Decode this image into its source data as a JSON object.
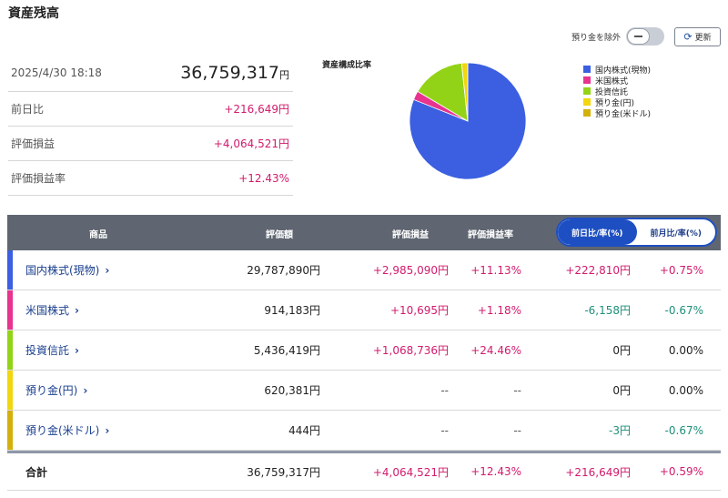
{
  "header": {
    "title": "資産残高"
  },
  "controls": {
    "exclude_label": "預り金を除外",
    "refresh_label": "更新"
  },
  "summary": {
    "datetime": "2025/4/30 18:18",
    "total": "36,759,317",
    "total_unit": "円",
    "rows": [
      {
        "label": "前日比",
        "value": "+216,649円"
      },
      {
        "label": "評価損益",
        "value": "+4,064,521円"
      },
      {
        "label": "評価損益率",
        "value": "+12.43%"
      }
    ]
  },
  "chart": {
    "title": "資産構成比率",
    "legend": [
      {
        "label": "国内株式(現物)",
        "color": "#3b5fe0"
      },
      {
        "label": "米国株式",
        "color": "#e8338f"
      },
      {
        "label": "投資信託",
        "color": "#93d317"
      },
      {
        "label": "預り金(円)",
        "color": "#f2d60f"
      },
      {
        "label": "預り金(米ドル)",
        "color": "#d4b00a"
      }
    ]
  },
  "chart_data": {
    "type": "pie",
    "title": "資産構成比率",
    "categories": [
      "国内株式(現物)",
      "米国株式",
      "投資信託",
      "預り金(円)",
      "預り金(米ドル)"
    ],
    "values": [
      29787890,
      914183,
      5436419,
      620381,
      444
    ],
    "colors": [
      "#3b5fe0",
      "#e8338f",
      "#93d317",
      "#f2d60f",
      "#d4b00a"
    ],
    "legend": "right"
  },
  "table": {
    "headers": {
      "product": "商品",
      "value": "評価額",
      "gain": "評価損益",
      "rate": "評価損益率"
    },
    "toggle": {
      "active": "前日比/率(%)",
      "inactive": "前月比/率(%)"
    },
    "rows": [
      {
        "name": "国内株式(現物)",
        "color": "#3b5fe0",
        "value": "29,787,890円",
        "gain": "+2,985,090円",
        "rate": "+11.13%",
        "day": "+222,810円",
        "day_rate": "+0.75%",
        "gain_cls": "pos",
        "rate_cls": "pos",
        "day_cls": "pos",
        "dayr_cls": "pos"
      },
      {
        "name": "米国株式",
        "color": "#e8338f",
        "value": "914,183円",
        "gain": "+10,695円",
        "rate": "+1.18%",
        "day": "-6,158円",
        "day_rate": "-0.67%",
        "gain_cls": "pos",
        "rate_cls": "pos",
        "day_cls": "neg",
        "dayr_cls": "neg"
      },
      {
        "name": "投資信託",
        "color": "#93d317",
        "value": "5,436,419円",
        "gain": "+1,068,736円",
        "rate": "+24.46%",
        "day": "0円",
        "day_rate": "0.00%",
        "gain_cls": "pos",
        "rate_cls": "pos",
        "day_cls": "",
        "dayr_cls": ""
      },
      {
        "name": "預り金(円)",
        "color": "#f2d60f",
        "value": "620,381円",
        "gain": "--",
        "rate": "--",
        "day": "0円",
        "day_rate": "0.00%",
        "gain_cls": "dash",
        "rate_cls": "dash",
        "day_cls": "",
        "dayr_cls": ""
      },
      {
        "name": "預り金(米ドル)",
        "color": "#d4b00a",
        "value": "444円",
        "gain": "--",
        "rate": "--",
        "day": "-3円",
        "day_rate": "-0.67%",
        "gain_cls": "dash",
        "rate_cls": "dash",
        "day_cls": "neg",
        "dayr_cls": "neg"
      }
    ],
    "total": {
      "name": "合計",
      "value": "36,759,317円",
      "gain": "+4,064,521円",
      "rate": "+12.43%",
      "day": "+216,649円",
      "day_rate": "+0.59%"
    }
  }
}
